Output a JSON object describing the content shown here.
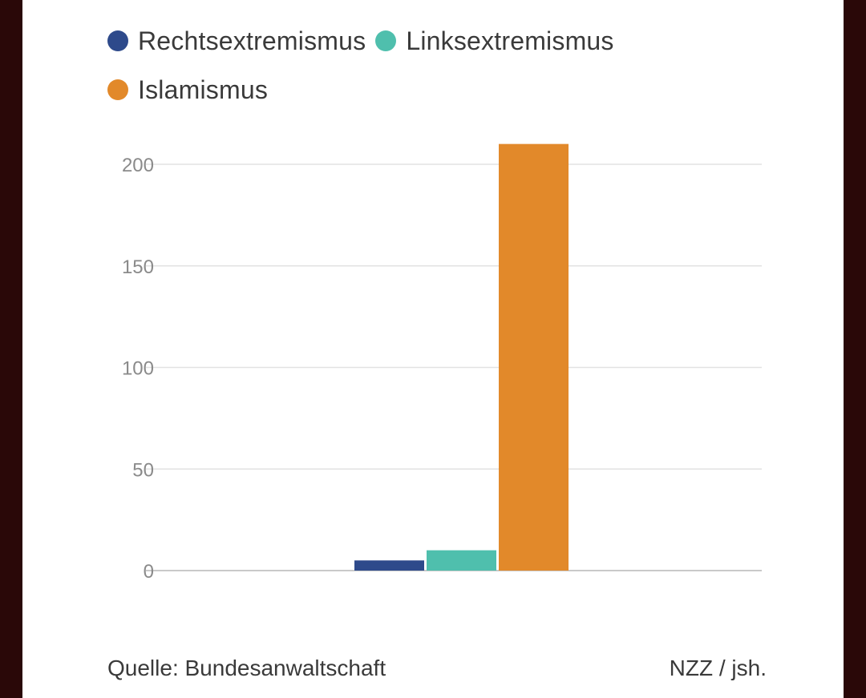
{
  "chart_data": {
    "type": "bar",
    "categories": [
      ""
    ],
    "series": [
      {
        "name": "Rechtsextremismus",
        "values": [
          5
        ],
        "color": "#2e4a8b"
      },
      {
        "name": "Linksextremismus",
        "values": [
          10
        ],
        "color": "#4fbfad"
      },
      {
        "name": "Islamismus",
        "values": [
          210
        ],
        "color": "#e2892a"
      }
    ],
    "title": "",
    "xlabel": "",
    "ylabel": "",
    "ylim": [
      0,
      200
    ],
    "yticks": [
      0,
      50,
      100,
      150,
      200
    ],
    "grid": true,
    "legend": "top-left"
  },
  "footer": {
    "source": "Quelle: Bundesanwaltschaft",
    "credit": "NZZ / jsh."
  }
}
